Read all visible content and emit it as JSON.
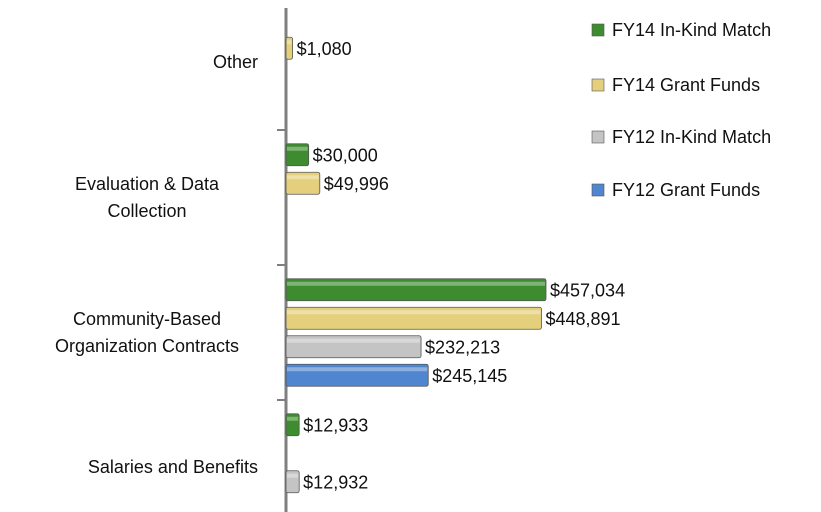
{
  "chart_data": {
    "type": "hbar",
    "categories": [
      "Other",
      "Evaluation & Data Collection",
      "Community-Based Organization Contracts",
      "Salaries and Benefits"
    ],
    "series": [
      {
        "name": "FY14 In-Kind Match",
        "color": "#3d8c2f",
        "values": [
          null,
          30000,
          457034,
          12933
        ],
        "value_labels": [
          null,
          "$30,000",
          "$457,034",
          "$12,933"
        ]
      },
      {
        "name": "FY14 Grant Funds",
        "color": "#e3cf7c",
        "values": [
          1080,
          49996,
          448891,
          null
        ],
        "value_labels": [
          "$1,080",
          "$49,996",
          "$448,891",
          null
        ]
      },
      {
        "name": "FY12 In-Kind Match",
        "color": "#c4c4c4",
        "values": [
          null,
          null,
          232213,
          12932
        ],
        "value_labels": [
          null,
          null,
          "$232,213",
          "$12,932"
        ]
      },
      {
        "name": "FY12 Grant Funds",
        "color": "#4f86cf",
        "values": [
          null,
          null,
          245145,
          null
        ],
        "value_labels": [
          null,
          null,
          "$245,145",
          null
        ]
      }
    ],
    "legend": "right"
  }
}
